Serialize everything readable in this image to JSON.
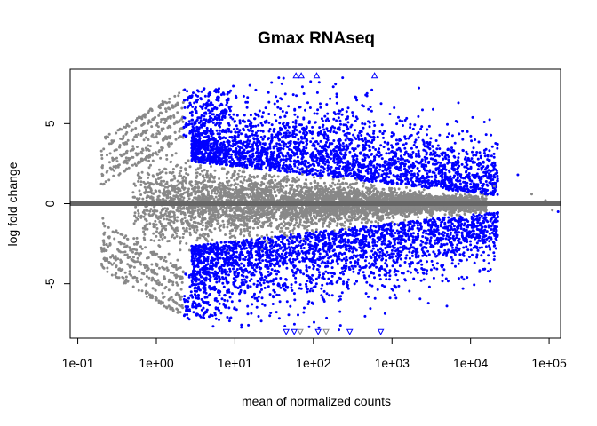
{
  "chart_data": {
    "type": "scatter",
    "title": "Gmax RNAseq",
    "xlabel": "mean of normalized counts",
    "ylabel": "log fold change",
    "x_scale": "log10",
    "xlim": [
      0.08,
      140000
    ],
    "ylim": [
      -8.4,
      8.4
    ],
    "xticks": [
      {
        "value": 0.1,
        "label": "1e-01"
      },
      {
        "value": 1,
        "label": "1e+00"
      },
      {
        "value": 10,
        "label": "1e+01"
      },
      {
        "value": 100,
        "label": "1e+02"
      },
      {
        "value": 1000,
        "label": "1e+03"
      },
      {
        "value": 10000,
        "label": "1e+04"
      },
      {
        "value": 100000,
        "label": "1e+05"
      }
    ],
    "yticks": [
      {
        "value": -5,
        "label": "-5"
      },
      {
        "value": 0,
        "label": "0"
      },
      {
        "value": 5,
        "label": "5"
      }
    ],
    "hline": {
      "y": 0,
      "color": "#666666"
    },
    "grid": false,
    "legend": "none",
    "colors": {
      "significant": "#0000ff",
      "not_significant": "#888888",
      "baseline": "#666666",
      "axis": "#000000"
    },
    "series_info": [
      {
        "group": "not significant",
        "color": "#888888",
        "approx_count": 9000
      },
      {
        "group": "significant (padj < 0.1)",
        "color": "#0000ff",
        "approx_count": 6000
      }
    ],
    "out_of_range_points": {
      "marker": "open-triangle",
      "up": [
        {
          "x": 60,
          "y": 8.0,
          "color": "#0000ff"
        },
        {
          "x": 70,
          "y": 8.0,
          "color": "#0000ff"
        },
        {
          "x": 110,
          "y": 8.0,
          "color": "#0000ff"
        },
        {
          "x": 600,
          "y": 8.0,
          "color": "#0000ff"
        }
      ],
      "down": [
        {
          "x": 45,
          "y": -8.0,
          "color": "#0000ff"
        },
        {
          "x": 57,
          "y": -8.0,
          "color": "#0000ff"
        },
        {
          "x": 68,
          "y": -8.0,
          "color": "#888888"
        },
        {
          "x": 115,
          "y": -8.0,
          "color": "#0000ff"
        },
        {
          "x": 145,
          "y": -8.0,
          "color": "#888888"
        },
        {
          "x": 290,
          "y": -8.0,
          "color": "#0000ff"
        },
        {
          "x": 720,
          "y": -8.0,
          "color": "#0000ff"
        }
      ]
    }
  }
}
